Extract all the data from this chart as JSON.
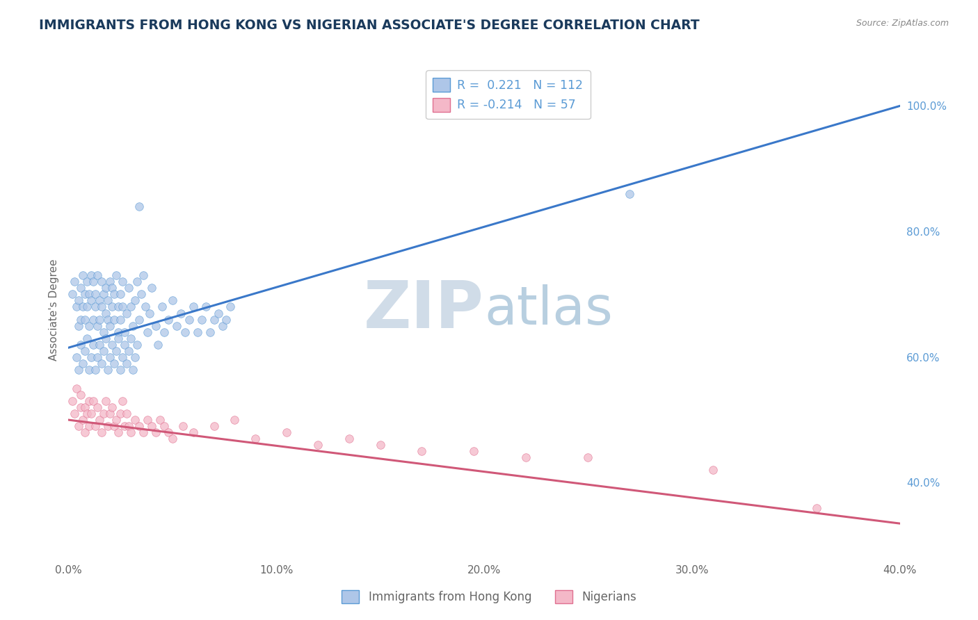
{
  "title": "IMMIGRANTS FROM HONG KONG VS NIGERIAN ASSOCIATE'S DEGREE CORRELATION CHART",
  "source_text": "Source: ZipAtlas.com",
  "ylabel": "Associate's Degree",
  "xlim": [
    0.0,
    0.4
  ],
  "ylim": [
    0.28,
    1.07
  ],
  "xtick_labels": [
    "0.0%",
    "10.0%",
    "20.0%",
    "30.0%",
    "40.0%"
  ],
  "xtick_values": [
    0.0,
    0.1,
    0.2,
    0.3,
    0.4
  ],
  "ytick_labels_right": [
    "40.0%",
    "60.0%",
    "80.0%",
    "100.0%"
  ],
  "ytick_values_right": [
    0.4,
    0.6,
    0.8,
    1.0
  ],
  "blue_R": 0.221,
  "blue_N": 112,
  "pink_R": -0.214,
  "pink_N": 57,
  "blue_fill_color": "#aec6e8",
  "blue_edge_color": "#5b9bd5",
  "pink_fill_color": "#f4b8c8",
  "pink_edge_color": "#e07090",
  "watermark_zip_color": "#d0dce8",
  "watermark_atlas_color": "#b8cfe0",
  "legend_label_blue": "Immigrants from Hong Kong",
  "legend_label_pink": "Nigerians",
  "background_color": "#ffffff",
  "grid_color": "#d0d8e0",
  "title_color": "#1a3a5c",
  "axis_label_color": "#666666",
  "right_tick_color": "#5b9bd5",
  "blue_trendline_color": "#3a78c9",
  "pink_trendline_color": "#d05878",
  "blue_trendline_x": [
    0.0,
    0.4
  ],
  "blue_trendline_y": [
    0.615,
    1.0
  ],
  "pink_trendline_x": [
    0.0,
    0.4
  ],
  "pink_trendline_y": [
    0.5,
    0.335
  ],
  "blue_scatter_x": [
    0.002,
    0.003,
    0.004,
    0.005,
    0.005,
    0.006,
    0.006,
    0.007,
    0.007,
    0.008,
    0.008,
    0.009,
    0.009,
    0.01,
    0.01,
    0.011,
    0.011,
    0.012,
    0.012,
    0.013,
    0.013,
    0.014,
    0.014,
    0.015,
    0.015,
    0.016,
    0.016,
    0.017,
    0.017,
    0.018,
    0.018,
    0.019,
    0.019,
    0.02,
    0.02,
    0.021,
    0.021,
    0.022,
    0.022,
    0.023,
    0.024,
    0.024,
    0.025,
    0.025,
    0.026,
    0.026,
    0.027,
    0.028,
    0.029,
    0.03,
    0.031,
    0.032,
    0.033,
    0.034,
    0.035,
    0.036,
    0.037,
    0.038,
    0.039,
    0.04,
    0.042,
    0.043,
    0.045,
    0.046,
    0.048,
    0.05,
    0.052,
    0.054,
    0.056,
    0.058,
    0.06,
    0.062,
    0.064,
    0.066,
    0.068,
    0.07,
    0.072,
    0.074,
    0.076,
    0.078,
    0.004,
    0.005,
    0.006,
    0.007,
    0.008,
    0.009,
    0.01,
    0.011,
    0.012,
    0.013,
    0.014,
    0.015,
    0.016,
    0.017,
    0.018,
    0.019,
    0.02,
    0.021,
    0.022,
    0.023,
    0.024,
    0.025,
    0.026,
    0.027,
    0.028,
    0.029,
    0.03,
    0.031,
    0.032,
    0.033,
    0.034,
    0.27
  ],
  "blue_scatter_y": [
    0.7,
    0.72,
    0.68,
    0.65,
    0.69,
    0.71,
    0.66,
    0.73,
    0.68,
    0.7,
    0.66,
    0.72,
    0.68,
    0.65,
    0.7,
    0.73,
    0.69,
    0.66,
    0.72,
    0.68,
    0.7,
    0.65,
    0.73,
    0.69,
    0.66,
    0.72,
    0.68,
    0.7,
    0.64,
    0.67,
    0.71,
    0.66,
    0.69,
    0.72,
    0.65,
    0.68,
    0.71,
    0.66,
    0.7,
    0.73,
    0.68,
    0.64,
    0.7,
    0.66,
    0.72,
    0.68,
    0.64,
    0.67,
    0.71,
    0.68,
    0.65,
    0.69,
    0.72,
    0.66,
    0.7,
    0.73,
    0.68,
    0.64,
    0.67,
    0.71,
    0.65,
    0.62,
    0.68,
    0.64,
    0.66,
    0.69,
    0.65,
    0.67,
    0.64,
    0.66,
    0.68,
    0.64,
    0.66,
    0.68,
    0.64,
    0.66,
    0.67,
    0.65,
    0.66,
    0.68,
    0.6,
    0.58,
    0.62,
    0.59,
    0.61,
    0.63,
    0.58,
    0.6,
    0.62,
    0.58,
    0.6,
    0.62,
    0.59,
    0.61,
    0.63,
    0.58,
    0.6,
    0.62,
    0.59,
    0.61,
    0.63,
    0.58,
    0.6,
    0.62,
    0.59,
    0.61,
    0.63,
    0.58,
    0.6,
    0.62,
    0.84,
    0.86
  ],
  "pink_scatter_x": [
    0.002,
    0.003,
    0.004,
    0.005,
    0.006,
    0.006,
    0.007,
    0.008,
    0.008,
    0.009,
    0.01,
    0.01,
    0.011,
    0.012,
    0.013,
    0.014,
    0.015,
    0.016,
    0.017,
    0.018,
    0.019,
    0.02,
    0.021,
    0.022,
    0.023,
    0.024,
    0.025,
    0.026,
    0.027,
    0.028,
    0.029,
    0.03,
    0.032,
    0.034,
    0.036,
    0.038,
    0.04,
    0.042,
    0.044,
    0.046,
    0.048,
    0.05,
    0.055,
    0.06,
    0.07,
    0.08,
    0.09,
    0.105,
    0.12,
    0.135,
    0.15,
    0.17,
    0.195,
    0.22,
    0.25,
    0.31,
    0.36
  ],
  "pink_scatter_y": [
    0.53,
    0.51,
    0.55,
    0.49,
    0.52,
    0.54,
    0.5,
    0.52,
    0.48,
    0.51,
    0.53,
    0.49,
    0.51,
    0.53,
    0.49,
    0.52,
    0.5,
    0.48,
    0.51,
    0.53,
    0.49,
    0.51,
    0.52,
    0.49,
    0.5,
    0.48,
    0.51,
    0.53,
    0.49,
    0.51,
    0.49,
    0.48,
    0.5,
    0.49,
    0.48,
    0.5,
    0.49,
    0.48,
    0.5,
    0.49,
    0.48,
    0.47,
    0.49,
    0.48,
    0.49,
    0.5,
    0.47,
    0.48,
    0.46,
    0.47,
    0.46,
    0.45,
    0.45,
    0.44,
    0.44,
    0.42,
    0.36
  ]
}
